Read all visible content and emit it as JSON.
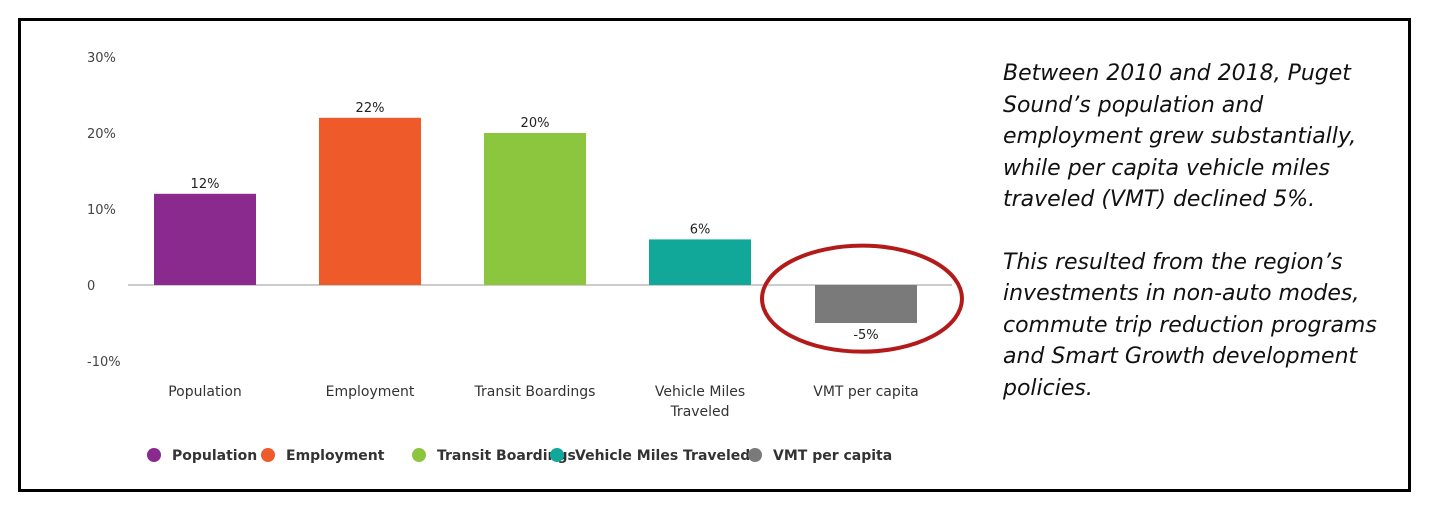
{
  "chart_data": {
    "type": "bar",
    "title": "",
    "categories": [
      "Population",
      "Employment",
      "Transit Boardings",
      "Vehicle Miles Traveled",
      "VMT per capita"
    ],
    "category_lines": [
      [
        "Population"
      ],
      [
        "Employment"
      ],
      [
        "Transit Boardings"
      ],
      [
        "Vehicle Miles",
        "Traveled"
      ],
      [
        "VMT per capita"
      ]
    ],
    "values": [
      12,
      22,
      20,
      6,
      -5
    ],
    "data_labels": [
      "12%",
      "22%",
      "20%",
      "6%",
      "-5%"
    ],
    "colors": [
      "#8b2a8e",
      "#ef5a2b",
      "#8cc63f",
      "#11a89a",
      "#7a7a7a"
    ],
    "ylim": [
      -10,
      30
    ],
    "yticks": [
      -10,
      0,
      10,
      20,
      30
    ],
    "ytick_labels": [
      "-10%",
      "0",
      "10%",
      "20%",
      "30%"
    ],
    "grid": false,
    "legend": {
      "position": "bottom",
      "entries": [
        "Population",
        "Employment",
        "Transit Boardings",
        "Vehicle Miles Traveled",
        "VMT per capita"
      ]
    },
    "highlight": {
      "category": "VMT per capita",
      "shape": "ellipse",
      "color": "#b31b1b"
    }
  },
  "caption": {
    "paragraph1": "Between 2010 and 2018, Puget Sound’s population and employment grew substantially, while per capita vehicle miles traveled (VMT) declined 5%.",
    "paragraph2": "This resulted from the region’s investments in non-auto modes, commute trip reduction programs and Smart Growth development policies."
  }
}
